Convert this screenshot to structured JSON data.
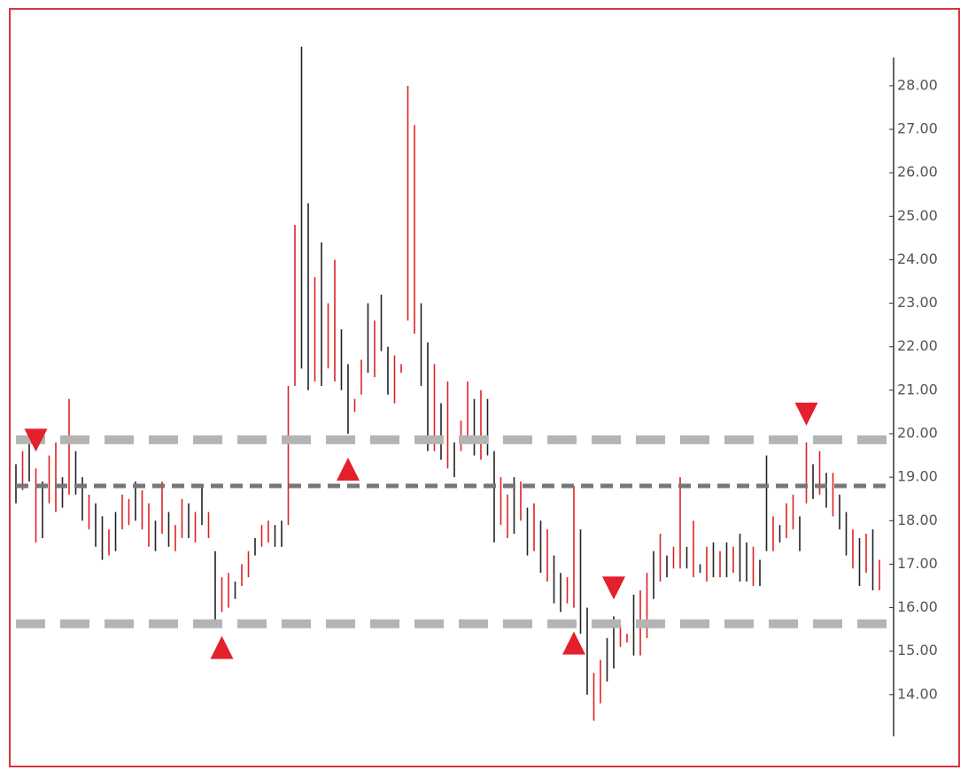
{
  "chart_data": {
    "type": "ohlc",
    "high": [
      19.3,
      19.6,
      19.8,
      19.2,
      18.9,
      19.5,
      19.8,
      19.0,
      20.8,
      19.6,
      19.0,
      18.6,
      18.4,
      18.1,
      17.8,
      18.2,
      18.6,
      18.5,
      18.9,
      18.7,
      18.4,
      18.0,
      18.9,
      18.2,
      17.9,
      18.5,
      18.4,
      18.2,
      18.8,
      18.2,
      17.3,
      16.7,
      16.8,
      16.6,
      17.0,
      17.3,
      17.6,
      17.9,
      18.0,
      17.9,
      18.0,
      21.1,
      24.8,
      28.9,
      25.3,
      23.6,
      24.4,
      23.0,
      24.0,
      22.4,
      21.6,
      20.8,
      21.7,
      23.0,
      22.6,
      23.2,
      22.0,
      21.8,
      21.6,
      28.0,
      27.1,
      23.0,
      22.1,
      21.6,
      20.7,
      21.2,
      19.8,
      20.3,
      21.2,
      20.8,
      21.0,
      20.8,
      19.6,
      19.0,
      18.6,
      19.0,
      18.9,
      18.3,
      18.4,
      18.0,
      17.8,
      17.2,
      16.8,
      16.7,
      18.8,
      17.8,
      16.0,
      14.5,
      14.8,
      15.3,
      15.8,
      15.6,
      15.4,
      16.3,
      16.4,
      16.8,
      17.3,
      17.7,
      17.2,
      17.4,
      19.0,
      17.4,
      18.0,
      17.0,
      17.4,
      17.5,
      17.3,
      17.5,
      17.4,
      17.7,
      17.5,
      17.4,
      17.1,
      19.5,
      18.1,
      17.9,
      18.4,
      18.6,
      18.1,
      19.8,
      19.3,
      19.6,
      19.1,
      19.1,
      18.6,
      18.2,
      17.8,
      17.6,
      17.7,
      17.8,
      17.1
    ],
    "low": [
      18.4,
      18.7,
      18.9,
      17.5,
      17.6,
      18.4,
      18.2,
      18.3,
      18.6,
      18.6,
      18.0,
      17.8,
      17.4,
      17.1,
      17.2,
      17.3,
      17.8,
      17.9,
      18.0,
      17.8,
      17.4,
      17.3,
      17.7,
      17.4,
      17.3,
      17.6,
      17.6,
      17.5,
      17.9,
      17.6,
      15.7,
      15.9,
      16.0,
      16.2,
      16.5,
      16.7,
      17.2,
      17.4,
      17.5,
      17.4,
      17.4,
      17.9,
      21.1,
      21.5,
      21.0,
      21.2,
      21.1,
      21.5,
      21.2,
      21.0,
      20.0,
      20.5,
      20.9,
      21.4,
      21.3,
      21.9,
      20.9,
      20.7,
      21.4,
      22.6,
      22.3,
      21.1,
      19.6,
      19.6,
      19.4,
      19.2,
      19.0,
      19.6,
      19.8,
      19.5,
      19.4,
      19.5,
      17.5,
      17.9,
      17.6,
      17.7,
      18.0,
      17.2,
      17.3,
      16.8,
      16.6,
      16.1,
      15.9,
      16.1,
      16.0,
      15.4,
      14.0,
      13.4,
      13.8,
      14.3,
      14.6,
      15.1,
      15.2,
      14.9,
      14.9,
      15.3,
      16.2,
      16.6,
      16.7,
      16.9,
      16.9,
      16.9,
      16.7,
      16.8,
      16.6,
      16.7,
      16.7,
      16.7,
      16.8,
      16.6,
      16.6,
      16.5,
      16.5,
      17.3,
      17.3,
      17.5,
      17.6,
      17.8,
      17.3,
      18.4,
      18.5,
      18.6,
      18.3,
      18.1,
      17.8,
      17.2,
      16.9,
      16.5,
      16.8,
      16.4,
      16.4
    ],
    "colors": [
      "#222",
      "#d22",
      "#222",
      "#d22",
      "#222",
      "#d22",
      "#d22",
      "#222",
      "#d22",
      "#222",
      "#222",
      "#d22",
      "#222",
      "#222",
      "#d22",
      "#222",
      "#d22",
      "#d22",
      "#222",
      "#d22",
      "#d22",
      "#222",
      "#d22",
      "#222",
      "#d22",
      "#d22",
      "#222",
      "#d22",
      "#222",
      "#d22",
      "#222",
      "#d22",
      "#d22",
      "#222",
      "#d22",
      "#d22",
      "#222",
      "#d22",
      "#d22",
      "#222",
      "#222",
      "#d22",
      "#d22",
      "#222",
      "#222",
      "#d22",
      "#222",
      "#d22",
      "#d22",
      "#222",
      "#222",
      "#d22",
      "#d22",
      "#222",
      "#d22",
      "#222",
      "#222",
      "#d22",
      "#d22",
      "#d22",
      "#d22",
      "#222",
      "#222",
      "#d22",
      "#222",
      "#d22",
      "#222",
      "#d22",
      "#d22",
      "#222",
      "#d22",
      "#222",
      "#222",
      "#d22",
      "#d22",
      "#222",
      "#d22",
      "#222",
      "#d22",
      "#222",
      "#d22",
      "#222",
      "#222",
      "#d22",
      "#d22",
      "#222",
      "#222",
      "#d22",
      "#d22",
      "#222",
      "#222",
      "#d22",
      "#d22",
      "#222",
      "#d22",
      "#d22",
      "#222",
      "#d22",
      "#222",
      "#d22",
      "#d22",
      "#222",
      "#d22",
      "#222",
      "#d22",
      "#222",
      "#d22",
      "#222",
      "#d22",
      "#222",
      "#222",
      "#d22",
      "#222",
      "#222",
      "#d22",
      "#222",
      "#d22",
      "#d22",
      "#222",
      "#d22",
      "#222",
      "#d22",
      "#222",
      "#d22",
      "#222",
      "#222",
      "#d22",
      "#222",
      "#d22",
      "#222",
      "#d22"
    ],
    "levels": [
      {
        "value": 19.86,
        "color": "#b4b4b4",
        "style": "wide"
      },
      {
        "value": 18.8,
        "color": "#777777",
        "style": "narrow"
      },
      {
        "value": 15.63,
        "color": "#b4b4b4",
        "style": "wide"
      }
    ],
    "markers": [
      {
        "bar": 3,
        "direction": "down"
      },
      {
        "bar": 119,
        "direction": "down"
      },
      {
        "bar": 90,
        "direction": "down"
      },
      {
        "bar": 50,
        "direction": "up"
      },
      {
        "bar": 31,
        "direction": "up"
      },
      {
        "bar": 84,
        "direction": "up"
      }
    ],
    "marker_color": "#e3202c",
    "ylim": [
      13.04,
      28.65
    ],
    "yticks": [
      {
        "value": 14,
        "label": "14.00"
      },
      {
        "value": 15,
        "label": "15.00"
      },
      {
        "value": 16,
        "label": "16.00"
      },
      {
        "value": 17,
        "label": "17.00"
      },
      {
        "value": 18,
        "label": "18.00"
      },
      {
        "value": 19,
        "label": "19.00"
      },
      {
        "value": 20,
        "label": "20.00"
      },
      {
        "value": 21,
        "label": "21.00"
      },
      {
        "value": 22,
        "label": "22.00"
      },
      {
        "value": 23,
        "label": "23.00"
      },
      {
        "value": 24,
        "label": "24.00"
      },
      {
        "value": 25,
        "label": "25.00"
      },
      {
        "value": 26,
        "label": "26.00"
      },
      {
        "value": 27,
        "label": "27.00"
      },
      {
        "value": 28,
        "label": "28.00"
      }
    ]
  }
}
